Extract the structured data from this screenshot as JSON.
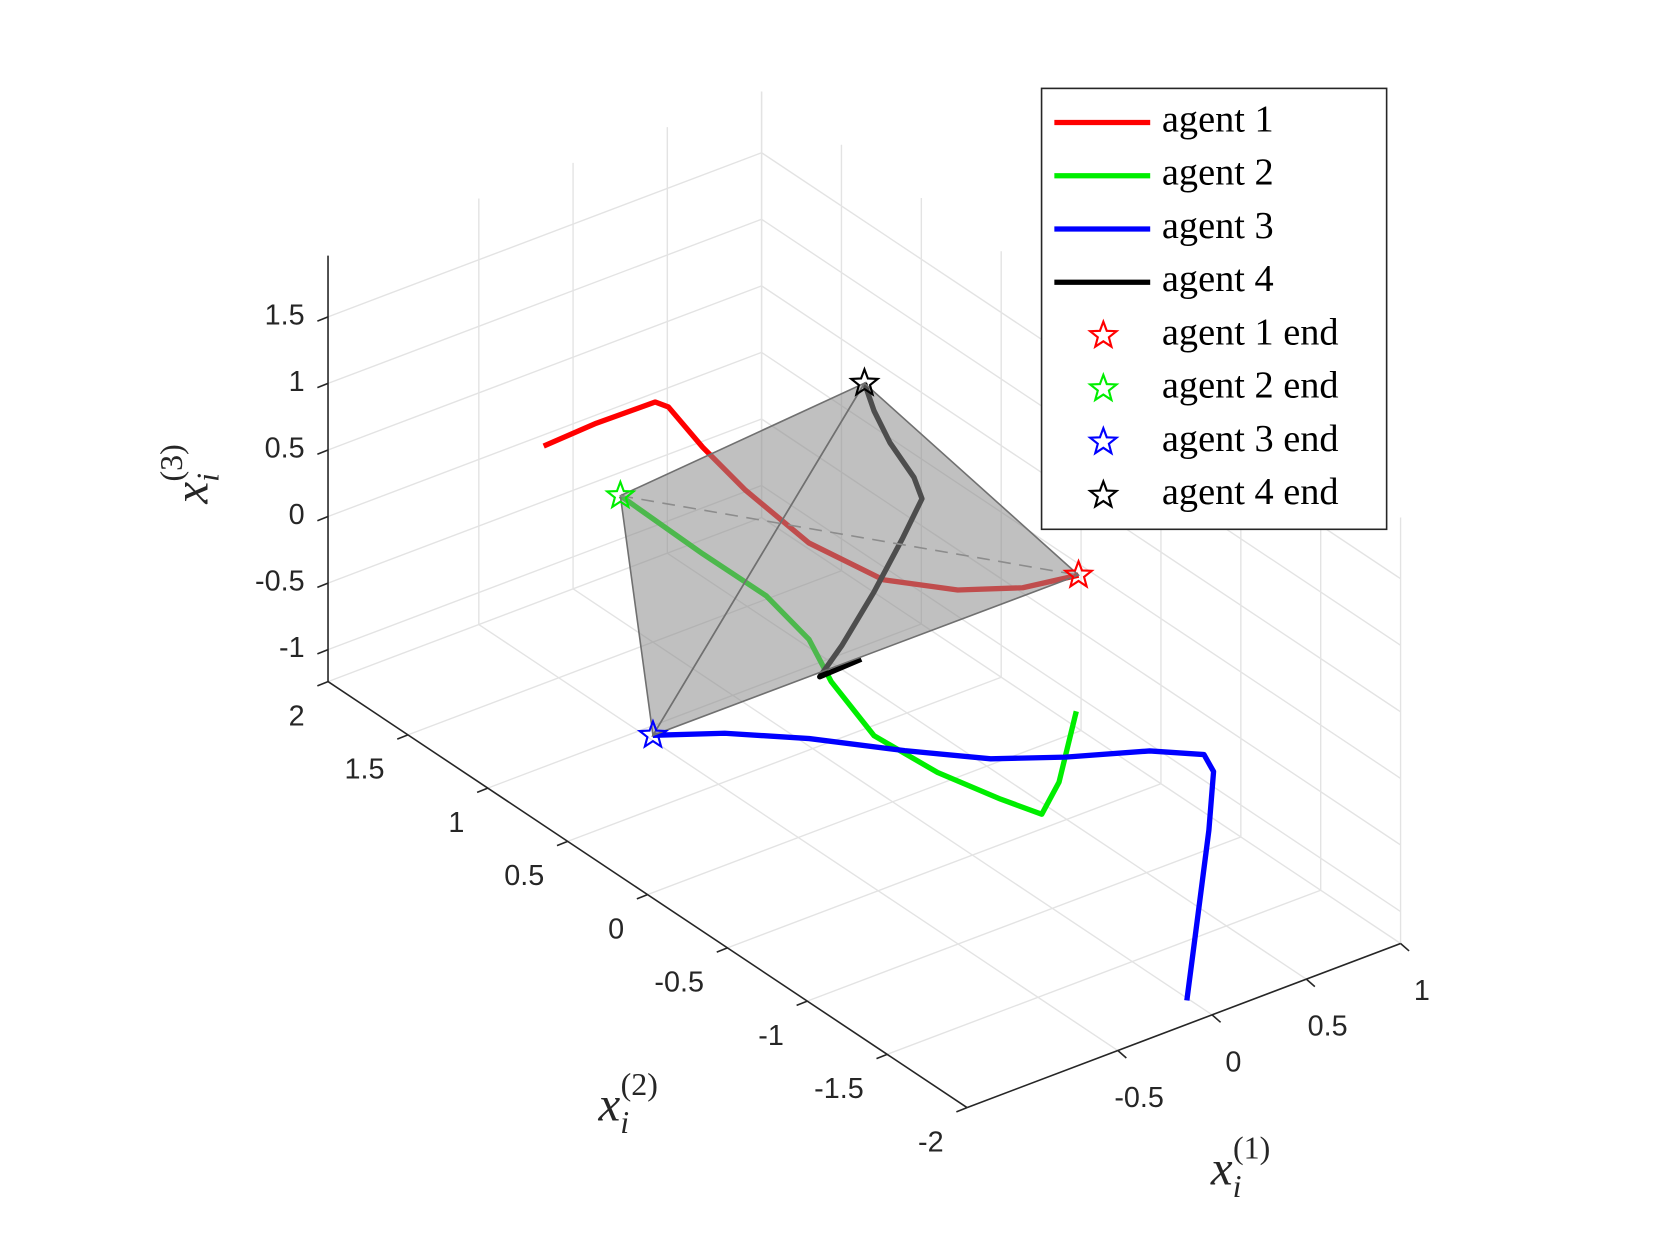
{
  "chart_data": {
    "type": "line3d",
    "xlabel": {
      "var": "x",
      "sub": "i",
      "sup": "(1)"
    },
    "ylabel": {
      "var": "x",
      "sub": "i",
      "sup": "(2)"
    },
    "zlabel": {
      "var": "x",
      "sub": "i",
      "sup": "(3)"
    },
    "xlim": [
      -1.3,
      1
    ],
    "ylim": [
      -2,
      2
    ],
    "zlim": [
      -1.24,
      1.96
    ],
    "xticks": [
      -0.5,
      0,
      0.5,
      1
    ],
    "yticks": [
      -2,
      -1.5,
      -1,
      -0.5,
      0,
      0.5,
      1,
      1.5,
      2
    ],
    "zticks": [
      -1,
      -0.5,
      0,
      0.5,
      1,
      1.5
    ],
    "grid": true,
    "legend": "upper right",
    "hull": true,
    "series": [
      {
        "name": "agent 1",
        "marker_name": "agent 1 end",
        "color": "#ff0000",
        "x": [
          -0.3,
          -0.25,
          -0.2,
          -0.18,
          -0.1,
          0.05,
          0.2,
          0.4,
          0.6,
          0.75,
          0.8
        ],
        "y": [
          1.83,
          1.56,
          1.25,
          1.19,
          1.07,
          0.98,
          0.76,
          0.53,
          0.3,
          0.07,
          -0.22
        ],
        "z": [
          0.13,
          0.49,
          0.87,
          0.87,
          0.62,
          0.29,
          -0.01,
          -0.21,
          -0.21,
          -0.09,
          0.21
        ]
      },
      {
        "name": "agent 2",
        "marker_name": "agent 2 end",
        "color": "#00ee00",
        "x": [
          0.5,
          0.4,
          0.3,
          0.15,
          -0.05,
          -0.2,
          -0.3,
          -0.35,
          -0.45,
          -0.6,
          -0.8
        ],
        "y": [
          -0.56,
          -0.57,
          -0.58,
          -0.5,
          -0.34,
          -0.12,
          0.03,
          0.11,
          0.26,
          0.48,
          0.76
        ],
        "z": [
          -0.38,
          -0.85,
          -1.03,
          -0.9,
          -0.72,
          -0.54,
          -0.2,
          0.08,
          0.34,
          0.56,
          0.88
        ]
      },
      {
        "name": "agent 3",
        "marker_name": "agent 3 end",
        "color": "#0000ff",
        "x": [
          -0.1,
          -0.05,
          0,
          0.05,
          0.05,
          0,
          -0.1,
          -0.2,
          -0.3,
          -0.4,
          -0.45,
          -0.5
        ],
        "y": [
          -1.96,
          -1.97,
          -1.98,
          -1.95,
          -1.89,
          -1.61,
          -1.2,
          -0.85,
          -0.43,
          0.05,
          0.52,
          0.91
        ],
        "z": [
          -1.11,
          -0.49,
          0.13,
          0.52,
          0.6,
          0.43,
          0.11,
          -0.13,
          -0.35,
          -0.59,
          -0.9,
          -1.2
        ]
      },
      {
        "name": "agent 4",
        "marker_name": "agent 4 end",
        "color": "#000000",
        "x": [
          0.3,
          0.3,
          0.3,
          0.3,
          0.3,
          0.3,
          0.3,
          0.3,
          0.3,
          0.3
        ],
        "y": [
          0.55,
          0.81,
          0.67,
          0.47,
          0.29,
          0.17,
          0.22,
          0.37,
          0.47,
          0.53
        ],
        "z": [
          -0.77,
          -1.11,
          -0.76,
          -0.2,
          0.35,
          0.74,
          0.86,
          1.0,
          1.16,
          1.32
        ]
      }
    ]
  }
}
